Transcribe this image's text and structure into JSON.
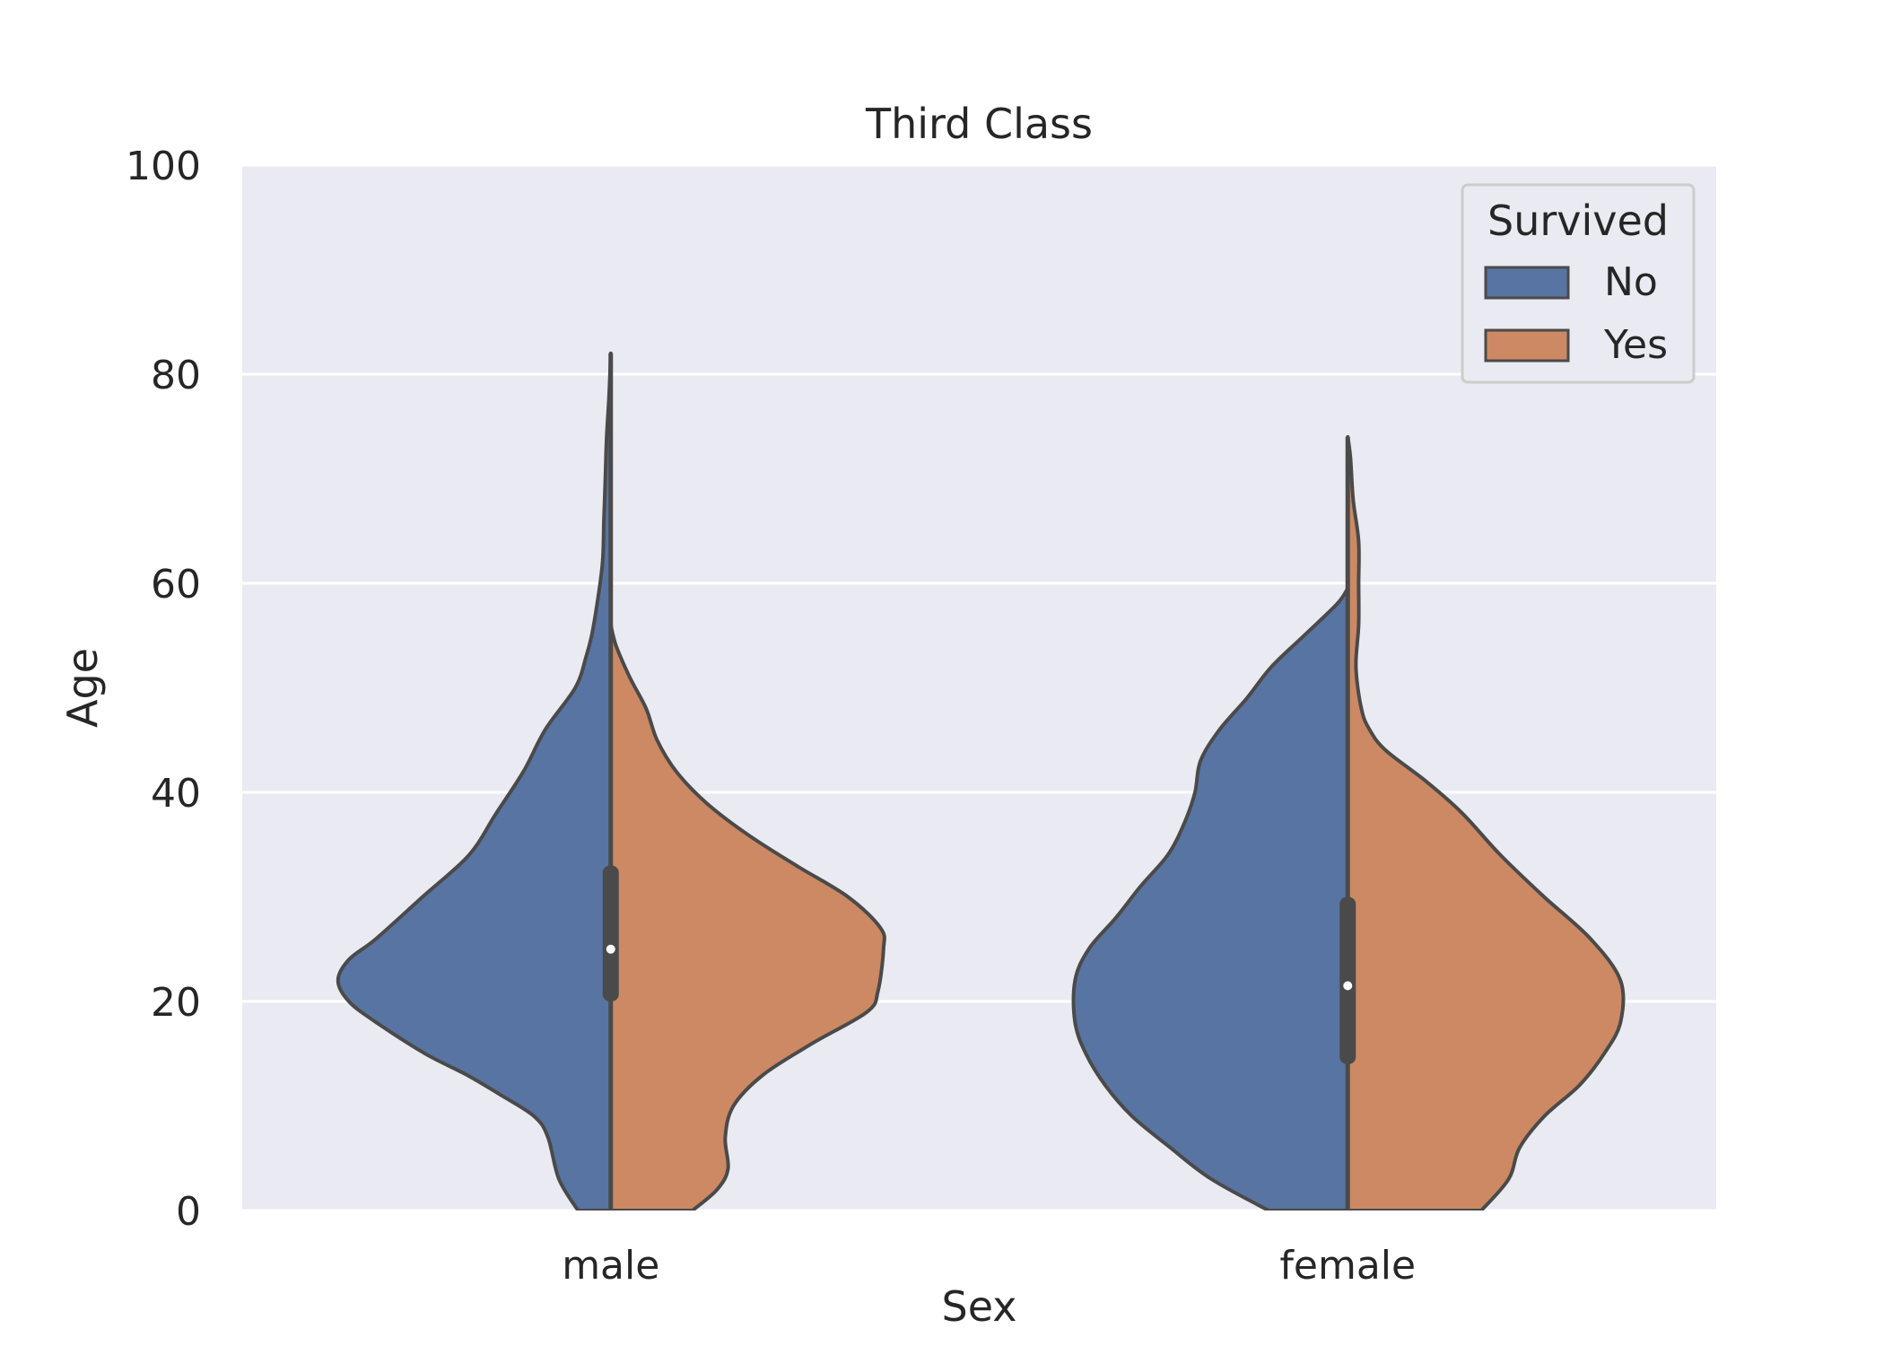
{
  "chart_data": {
    "type": "violin",
    "title": "Third Class",
    "xlabel": "Sex",
    "ylabel": "Age",
    "ylim": [
      0,
      100
    ],
    "yticks": [
      0,
      20,
      40,
      60,
      80,
      100
    ],
    "categories": [
      "male",
      "female"
    ],
    "grid": "on",
    "legend": {
      "title": "Survived",
      "position": "top-right",
      "entries": [
        "No",
        "Yes"
      ]
    },
    "series": [
      {
        "name": "No",
        "color": "#5874a3",
        "side": "left",
        "violins": [
          {
            "category": "male",
            "profile": [
              [
                0,
                0.12
              ],
              [
                3,
                0.19
              ],
              [
                7,
                0.23
              ],
              [
                9,
                0.28
              ],
              [
                11,
                0.4
              ],
              [
                13,
                0.53
              ],
              [
                15,
                0.68
              ],
              [
                18,
                0.86
              ],
              [
                20,
                0.96
              ],
              [
                22,
                1.0
              ],
              [
                24,
                0.96
              ],
              [
                26,
                0.86
              ],
              [
                30,
                0.69
              ],
              [
                34,
                0.52
              ],
              [
                38,
                0.42
              ],
              [
                42,
                0.32
              ],
              [
                46,
                0.24
              ],
              [
                50,
                0.13
              ],
              [
                53,
                0.09
              ],
              [
                55,
                0.07
              ],
              [
                58,
                0.05
              ],
              [
                62,
                0.03
              ],
              [
                66,
                0.025
              ],
              [
                70,
                0.02
              ],
              [
                74,
                0.015
              ],
              [
                78,
                0.006
              ],
              [
                82,
                0.0
              ]
            ]
          },
          {
            "category": "female",
            "profile": [
              [
                0,
                0.29
              ],
              [
                3,
                0.5
              ],
              [
                6,
                0.65
              ],
              [
                9,
                0.79
              ],
              [
                12,
                0.89
              ],
              [
                15,
                0.96
              ],
              [
                18,
                1.0
              ],
              [
                22,
                1.0
              ],
              [
                25,
                0.95
              ],
              [
                28,
                0.85
              ],
              [
                31,
                0.76
              ],
              [
                34,
                0.66
              ],
              [
                37,
                0.6
              ],
              [
                40,
                0.56
              ],
              [
                43,
                0.54
              ],
              [
                46,
                0.47
              ],
              [
                49,
                0.37
              ],
              [
                52,
                0.28
              ],
              [
                55,
                0.16
              ],
              [
                58,
                0.04
              ],
              [
                59.5,
                0.0
              ]
            ]
          }
        ]
      },
      {
        "name": "Yes",
        "color": "#cc8963",
        "side": "right",
        "violins": [
          {
            "category": "male",
            "profile": [
              [
                0,
                0.3
              ],
              [
                2,
                0.39
              ],
              [
                4,
                0.43
              ],
              [
                7,
                0.42
              ],
              [
                10,
                0.45
              ],
              [
                13,
                0.56
              ],
              [
                16,
                0.74
              ],
              [
                19,
                0.94
              ],
              [
                21,
                0.98
              ],
              [
                25,
                1.0
              ],
              [
                27,
                0.99
              ],
              [
                30,
                0.87
              ],
              [
                33,
                0.68
              ],
              [
                36,
                0.5
              ],
              [
                39,
                0.35
              ],
              [
                42,
                0.24
              ],
              [
                45,
                0.17
              ],
              [
                48,
                0.13
              ],
              [
                51,
                0.07
              ],
              [
                54,
                0.02
              ],
              [
                56,
                0.0
              ]
            ]
          },
          {
            "category": "female",
            "profile": [
              [
                0,
                0.49
              ],
              [
                3,
                0.59
              ],
              [
                6,
                0.63
              ],
              [
                9,
                0.72
              ],
              [
                12,
                0.85
              ],
              [
                15,
                0.94
              ],
              [
                18,
                1.0
              ],
              [
                22,
                1.0
              ],
              [
                26,
                0.89
              ],
              [
                30,
                0.72
              ],
              [
                34,
                0.56
              ],
              [
                38,
                0.42
              ],
              [
                41,
                0.29
              ],
              [
                44,
                0.14
              ],
              [
                46,
                0.08
              ],
              [
                48,
                0.05
              ],
              [
                52,
                0.03
              ],
              [
                56,
                0.04
              ],
              [
                60,
                0.04
              ],
              [
                64,
                0.04
              ],
              [
                68,
                0.02
              ],
              [
                72,
                0.01
              ],
              [
                74,
                0.0
              ]
            ]
          }
        ]
      }
    ],
    "box_summaries": [
      {
        "category": "male",
        "median": 25,
        "q1": 20,
        "q3": 33,
        "whisker_low": 0,
        "whisker_high": 82
      },
      {
        "category": "female",
        "median": 21.5,
        "q1": 14,
        "q3": 30,
        "whisker_low": 0,
        "whisker_high": 74
      }
    ],
    "colors": {
      "plot_background": "#eaeaf2",
      "grid": "#ffffff",
      "outline": "#4a4a4a",
      "text": "#262626"
    }
  }
}
